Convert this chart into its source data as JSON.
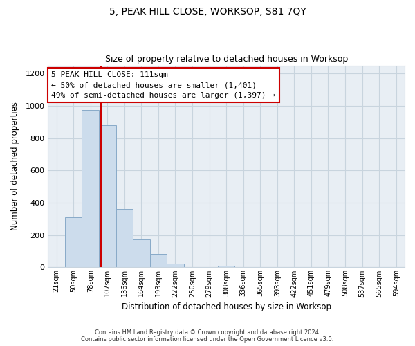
{
  "title": "5, PEAK HILL CLOSE, WORKSOP, S81 7QY",
  "subtitle": "Size of property relative to detached houses in Worksop",
  "xlabel": "Distribution of detached houses by size in Worksop",
  "ylabel": "Number of detached properties",
  "bin_labels": [
    "21sqm",
    "50sqm",
    "78sqm",
    "107sqm",
    "136sqm",
    "164sqm",
    "193sqm",
    "222sqm",
    "250sqm",
    "279sqm",
    "308sqm",
    "336sqm",
    "365sqm",
    "393sqm",
    "422sqm",
    "451sqm",
    "479sqm",
    "508sqm",
    "537sqm",
    "565sqm",
    "594sqm"
  ],
  "bar_heights": [
    0,
    310,
    975,
    880,
    360,
    175,
    85,
    25,
    0,
    0,
    10,
    0,
    0,
    0,
    0,
    0,
    0,
    0,
    0,
    0,
    0
  ],
  "bar_color": "#ccdcec",
  "bar_edge_color": "#88aac8",
  "vline_color": "#cc0000",
  "annotation_text": "5 PEAK HILL CLOSE: 111sqm\n← 50% of detached houses are smaller (1,401)\n49% of semi-detached houses are larger (1,397) →",
  "annotation_box_color": "#ffffff",
  "annotation_box_edge": "#cc0000",
  "ylim": [
    0,
    1250
  ],
  "yticks": [
    0,
    200,
    400,
    600,
    800,
    1000,
    1200
  ],
  "footer": "Contains HM Land Registry data © Crown copyright and database right 2024.\nContains public sector information licensed under the Open Government Licence v3.0.",
  "background_color": "#ffffff",
  "plot_bg_color": "#e8eef4",
  "grid_color": "#c8d4de",
  "title_fontsize": 10,
  "subtitle_fontsize": 9
}
